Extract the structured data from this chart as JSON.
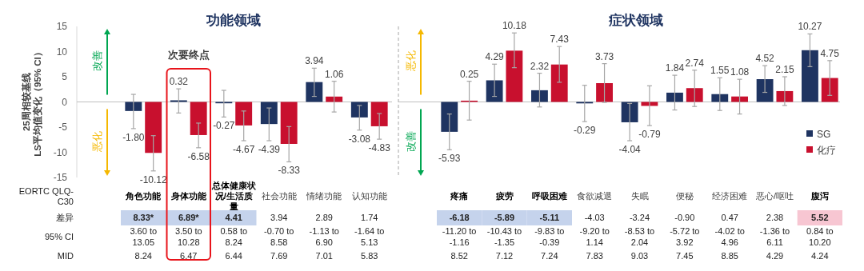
{
  "chart_data": [
    {
      "type": "bar",
      "title": "功能领域",
      "ylabel": "25周相较基线\nLS平均值变化（95% CI）",
      "categories": [
        "角色功能",
        "身体功能",
        "总体健康状况/生活质量",
        "社会功能",
        "情绪功能",
        "认知功能"
      ],
      "series": [
        {
          "color": "#1f3461",
          "values": [
            -1.8,
            0.32,
            -0.27,
            -4.39,
            3.94,
            -3.08
          ],
          "value_labels": [
            "-1.80",
            "0.32",
            "-0.27",
            "-4.39",
            "3.94",
            "-3.08"
          ],
          "errors": [
            [
              -5.3,
              1.5
            ],
            [
              -2.2,
              2.6
            ],
            [
              -3.0,
              2.3
            ],
            [
              -7.7,
              -1.2
            ],
            [
              1.1,
              6.7
            ],
            [
              -5.6,
              -0.7
            ]
          ]
        },
        {
          "color": "#c8102e",
          "values": [
            -10.12,
            -6.58,
            -4.67,
            -8.33,
            1.06,
            -4.83
          ],
          "value_labels": [
            "-10.12",
            "-6.58",
            "-4.67",
            "-8.33",
            "1.06",
            "-4.83"
          ],
          "errors": [
            [
              -13.7,
              -6.7
            ],
            [
              -9.1,
              -4.2
            ],
            [
              -7.7,
              -1.8
            ],
            [
              -11.9,
              -4.9
            ],
            [
              -2.0,
              4.1
            ],
            [
              -7.4,
              -2.3
            ]
          ]
        }
      ],
      "ylim": [
        -15,
        15
      ],
      "yticks": [
        -15,
        -10,
        -5,
        0,
        5,
        10,
        15
      ],
      "annotations": [
        "次要终点",
        "改善",
        "恶化",
        "EORTC QLQ-C30",
        "差异",
        "95% CI",
        "MID",
        "8.33*",
        "3.60 to 13.05",
        "8.24",
        "6.89*",
        "3.50 to 10.28",
        "6.47",
        "4.41",
        "0.58 to 8.24",
        "6.44",
        "3.94",
        "-0.70 to 8.58",
        "7.69",
        "2.89",
        "-1.13 to 6.90",
        "7.01",
        "1.74",
        "-1.64 to 5.13",
        "5.83"
      ]
    },
    {
      "type": "bar",
      "title": "症状领域",
      "categories": [
        "疼痛",
        "疲劳",
        "呼吸困难",
        "食欲减退",
        "失眠",
        "便秘",
        "经济困难",
        "恶心/呕吐",
        "腹泻"
      ],
      "series": [
        {
          "name": "SG",
          "color": "#1f3461",
          "values": [
            -5.93,
            4.29,
            2.32,
            -0.29,
            -4.04,
            1.84,
            1.55,
            4.52,
            10.27
          ],
          "value_labels": [
            "-5.93",
            "4.29",
            "2.32",
            "-0.29",
            "-4.04",
            "1.84",
            "1.55",
            "4.52",
            "10.27"
          ],
          "errors": [
            [
              -9.5,
              -2.4
            ],
            [
              1.1,
              7.5
            ],
            [
              -1.0,
              5.7
            ],
            [
              -3.9,
              3.3
            ],
            [
              -7.7,
              -0.3
            ],
            [
              -1.6,
              5.3
            ],
            [
              -1.7,
              4.8
            ],
            [
              1.9,
              7.2
            ],
            [
              7.0,
              13.5
            ]
          ]
        },
        {
          "name": "化疗",
          "color": "#c8102e",
          "values": [
            0.25,
            10.18,
            7.43,
            3.73,
            -0.79,
            2.74,
            1.08,
            2.15,
            4.75
          ],
          "value_labels": [
            "0.25",
            "10.18",
            "7.43",
            "3.73",
            "-0.79",
            "2.74",
            "1.08",
            "2.15",
            "4.75"
          ],
          "errors": [
            [
              -3.6,
              4.1
            ],
            [
              6.8,
              13.7
            ],
            [
              3.9,
              11.0
            ],
            [
              -0.1,
              7.6
            ],
            [
              -4.7,
              3.2
            ],
            [
              -0.9,
              6.3
            ],
            [
              -2.4,
              4.5
            ],
            [
              -0.7,
              5.0
            ],
            [
              1.3,
              8.2
            ]
          ]
        }
      ],
      "ylim": [
        -15,
        15
      ],
      "tick_labels": "x",
      "legend": "right",
      "annotations": [
        "恶化",
        "改善",
        "-6.18",
        "-11.20 to -1.16",
        "8.52",
        "-5.89",
        "-10.43 to -1.35",
        "7.12",
        "-5.11",
        "-9.83 to -0.39",
        "7.24",
        "-4.03",
        "-9.20 to 1.14",
        "7.83",
        "-3.24",
        "-8.53 to 2.04",
        "9.03",
        "-0.90",
        "-5.72 to 3.92",
        "7.45",
        "0.47",
        "-4.02 to 4.96",
        "8.85",
        "2.38",
        "-1.36 to 6.11",
        "4.29",
        "5.52",
        "0.84 to 10.20",
        "4.24"
      ]
    }
  ]
}
